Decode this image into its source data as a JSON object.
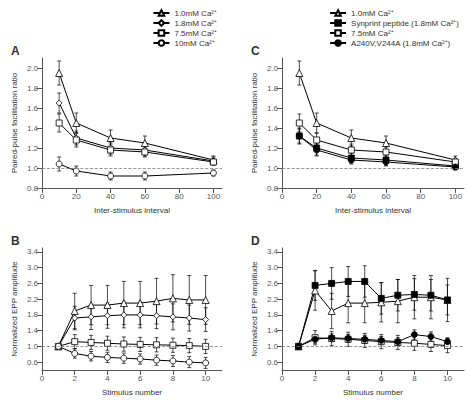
{
  "chart_data": [
    {
      "type": "line",
      "title": "A",
      "xlabel": "Inter-stimulus interval",
      "ylabel": "Paired-pulse facilitation ratio",
      "x": [
        10,
        20,
        40,
        60,
        100
      ],
      "series": [
        {
          "name": "1.0mM Ca²⁺",
          "color": "#000000",
          "marker": "triangle-open",
          "values": [
            1.95,
            1.45,
            1.3,
            1.25,
            1.08
          ],
          "yerr": [
            0.12,
            0.1,
            0.08,
            0.07,
            0.04
          ]
        },
        {
          "name": "1.8mM Ca²⁺",
          "color": "#000000",
          "marker": "diamond-open",
          "values": [
            1.65,
            1.3,
            1.2,
            1.18,
            1.07
          ],
          "yerr": [
            0.1,
            0.07,
            0.06,
            0.06,
            0.04
          ]
        },
        {
          "name": "7.5mM Ca²⁺",
          "color": "#000000",
          "marker": "square-open",
          "values": [
            1.45,
            1.28,
            1.18,
            1.16,
            1.06
          ],
          "yerr": [
            0.09,
            0.07,
            0.06,
            0.05,
            0.03
          ]
        },
        {
          "name": "10mM Ca²⁺",
          "color": "#000000",
          "marker": "circle-open",
          "values": [
            1.04,
            0.97,
            0.92,
            0.92,
            0.95
          ],
          "yerr": [
            0.07,
            0.05,
            0.04,
            0.04,
            0.03
          ]
        }
      ],
      "xlim": [
        0,
        105
      ],
      "xticks": [
        0,
        20,
        40,
        60,
        80,
        100
      ],
      "ylim": [
        0.8,
        2.1
      ],
      "yticks": [
        0.8,
        {
          "value": 1.0,
          "label": "1.0"
        },
        1.2,
        1.4,
        1.6,
        1.8,
        {
          "value": 2.0,
          "label": "2.0"
        }
      ],
      "hline": 1.0,
      "grid": false,
      "legend": "upper right"
    },
    {
      "type": "line",
      "title": "C",
      "xlabel": "Inter-stimulus interval",
      "ylabel": "Paired-pulse facilitation ratio",
      "x": [
        10,
        20,
        40,
        60,
        100
      ],
      "series": [
        {
          "name": "1.0mM Ca²⁺",
          "color": "#000000",
          "marker": "triangle-open",
          "values": [
            1.95,
            1.45,
            1.3,
            1.25,
            1.08
          ],
          "yerr": [
            0.12,
            0.1,
            0.08,
            0.07,
            0.04
          ]
        },
        {
          "name": "Synprint peptide (1.8mM Ca²⁺)",
          "color": "#000000",
          "marker": "square-filled",
          "values": [
            1.32,
            1.2,
            1.1,
            1.08,
            1.02
          ],
          "yerr": [
            0.08,
            0.07,
            0.05,
            0.05,
            0.03
          ]
        },
        {
          "name": "7.5mM Ca²⁺",
          "color": "#000000",
          "marker": "square-open",
          "values": [
            1.45,
            1.28,
            1.18,
            1.16,
            1.06
          ],
          "yerr": [
            0.09,
            0.07,
            0.06,
            0.05,
            0.03
          ]
        },
        {
          "name": "A240V,V244A (1.8mM Ca²⁺)",
          "color": "#000000",
          "marker": "circle-filled",
          "values": [
            1.32,
            1.18,
            1.08,
            1.06,
            1.01
          ],
          "yerr": [
            0.07,
            0.06,
            0.04,
            0.04,
            0.03
          ]
        }
      ],
      "xlim": [
        0,
        105
      ],
      "xticks": [
        0,
        20,
        40,
        60,
        80,
        100
      ],
      "ylim": [
        0.8,
        2.1
      ],
      "yticks": [
        0.8,
        {
          "value": 1.0,
          "label": "1.0"
        },
        1.2,
        1.4,
        1.6,
        1.8,
        {
          "value": 2.0,
          "label": "2.0"
        }
      ],
      "hline": 1.0,
      "grid": false,
      "legend": "upper right"
    },
    {
      "type": "line",
      "title": "B",
      "xlabel": "Stimulus number",
      "ylabel": "Normalized EPP amplitude",
      "x": [
        1,
        2,
        3,
        4,
        5,
        6,
        7,
        8,
        9,
        10
      ],
      "series": [
        {
          "name": "1.0mM Ca²⁺",
          "color": "#000000",
          "marker": "triangle-open",
          "values": [
            1.0,
            1.9,
            2.05,
            2.05,
            2.1,
            2.1,
            2.15,
            2.22,
            2.18,
            2.18
          ],
          "yerr": [
            0.0,
            0.45,
            0.5,
            0.5,
            0.55,
            0.55,
            0.58,
            0.6,
            0.62,
            0.62
          ]
        },
        {
          "name": "1.8mM Ca²⁺",
          "color": "#000000",
          "marker": "diamond-open",
          "values": [
            1.0,
            1.72,
            1.75,
            1.78,
            1.8,
            1.8,
            1.78,
            1.75,
            1.72,
            1.68
          ],
          "yerr": [
            0.0,
            0.3,
            0.32,
            0.32,
            0.33,
            0.33,
            0.33,
            0.33,
            0.33,
            0.3
          ]
        },
        {
          "name": "7.5mM Ca²⁺",
          "color": "#000000",
          "marker": "square-open",
          "values": [
            1.0,
            1.12,
            1.1,
            1.08,
            1.06,
            1.05,
            1.04,
            1.03,
            1.02,
            1.0
          ],
          "yerr": [
            0.0,
            0.18,
            0.18,
            0.18,
            0.18,
            0.18,
            0.18,
            0.18,
            0.18,
            0.18
          ]
        },
        {
          "name": "10mM Ca²⁺",
          "color": "#000000",
          "marker": "circle-open",
          "values": [
            1.0,
            0.82,
            0.75,
            0.72,
            0.7,
            0.68,
            0.65,
            0.63,
            0.6,
            0.58
          ],
          "yerr": [
            0.0,
            0.12,
            0.12,
            0.13,
            0.13,
            0.13,
            0.13,
            0.14,
            0.14,
            0.14
          ]
        }
      ],
      "xlim": [
        0,
        11
      ],
      "xticks": [
        0,
        2,
        4,
        6,
        8,
        10
      ],
      "ylim": [
        0.4,
        3.5
      ],
      "yticks": [
        0.6,
        {
          "value": 1.0,
          "label": "1.0"
        },
        1.4,
        1.8,
        2.2,
        2.6,
        {
          "value": 3.0,
          "label": "3.0"
        },
        3.4
      ],
      "hline": 1.0,
      "grid": false,
      "legend": false
    },
    {
      "type": "line",
      "title": "D",
      "xlabel": "Stimulus number",
      "ylabel": "Normalized EPP amplitude",
      "x": [
        1,
        2,
        3,
        4,
        5,
        6,
        7,
        8,
        9,
        10
      ],
      "series": [
        {
          "name": "1.0mM Ca²⁺",
          "color": "#000000",
          "marker": "triangle-open",
          "values": [
            1.0,
            2.42,
            1.9,
            2.1,
            2.1,
            2.12,
            2.15,
            2.25,
            2.25,
            2.18
          ],
          "yerr": [
            0.0,
            0.5,
            0.45,
            0.5,
            0.5,
            0.5,
            0.55,
            0.55,
            0.55,
            0.55
          ]
        },
        {
          "name": "Synprint peptide (1.8mM Ca²⁺)",
          "color": "#000000",
          "marker": "square-filled",
          "values": [
            1.0,
            2.55,
            2.6,
            2.65,
            2.65,
            2.22,
            2.3,
            2.32,
            2.3,
            2.18
          ],
          "yerr": [
            0.0,
            0.38,
            0.4,
            0.38,
            0.4,
            0.4,
            0.4,
            0.4,
            0.4,
            0.38
          ]
        },
        {
          "name": "7.5mM Ca²⁺",
          "color": "#000000",
          "marker": "square-open",
          "values": [
            1.0,
            1.22,
            1.2,
            1.18,
            1.15,
            1.12,
            1.1,
            1.08,
            1.05,
            1.02
          ],
          "yerr": [
            0.0,
            0.18,
            0.18,
            0.18,
            0.18,
            0.18,
            0.18,
            0.18,
            0.18,
            0.18
          ]
        },
        {
          "name": "A240V,V244A (1.8mM Ca²⁺)",
          "color": "#000000",
          "marker": "circle-filled",
          "values": [
            1.0,
            1.18,
            1.22,
            1.2,
            1.18,
            1.15,
            1.12,
            1.3,
            1.25,
            1.12
          ],
          "yerr": [
            0.0,
            0.1,
            0.1,
            0.1,
            0.1,
            0.1,
            0.1,
            0.12,
            0.12,
            0.1
          ]
        }
      ],
      "xlim": [
        0,
        11
      ],
      "xticks": [
        0,
        2,
        4,
        6,
        8,
        10
      ],
      "ylim": [
        0.4,
        3.5
      ],
      "yticks": [
        0.6,
        {
          "value": 1.0,
          "label": "1.0"
        },
        1.4,
        1.8,
        2.2,
        2.6,
        {
          "value": 3.0,
          "label": "3.0"
        },
        3.4
      ],
      "hline": 1.0,
      "grid": false,
      "legend": false
    }
  ]
}
